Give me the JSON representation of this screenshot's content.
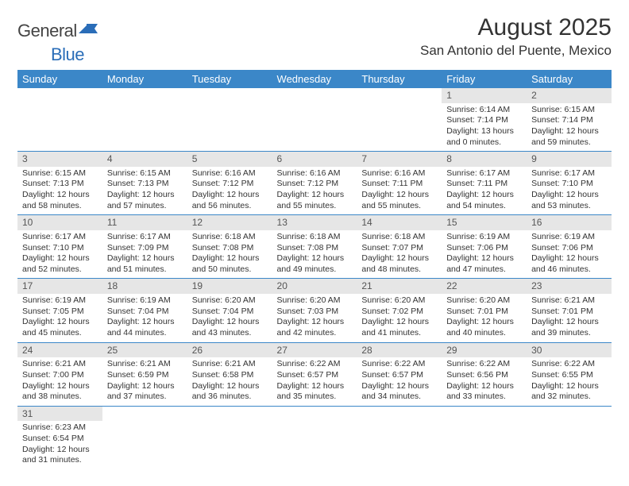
{
  "header": {
    "logo_general": "General",
    "logo_blue": "Blue",
    "month_title": "August 2025",
    "location": "San Antonio del Puente, Mexico"
  },
  "colors": {
    "header_bg": "#3b87c8",
    "header_fg": "#ffffff",
    "daynum_bg": "#e6e6e6",
    "row_border": "#3b87c8",
    "logo_blue": "#2a6db8"
  },
  "daynames": [
    "Sunday",
    "Monday",
    "Tuesday",
    "Wednesday",
    "Thursday",
    "Friday",
    "Saturday"
  ],
  "weeks": [
    [
      {
        "n": "",
        "sr": "",
        "ss": "",
        "dl": ""
      },
      {
        "n": "",
        "sr": "",
        "ss": "",
        "dl": ""
      },
      {
        "n": "",
        "sr": "",
        "ss": "",
        "dl": ""
      },
      {
        "n": "",
        "sr": "",
        "ss": "",
        "dl": ""
      },
      {
        "n": "",
        "sr": "",
        "ss": "",
        "dl": ""
      },
      {
        "n": "1",
        "sr": "Sunrise: 6:14 AM",
        "ss": "Sunset: 7:14 PM",
        "dl": "Daylight: 13 hours and 0 minutes."
      },
      {
        "n": "2",
        "sr": "Sunrise: 6:15 AM",
        "ss": "Sunset: 7:14 PM",
        "dl": "Daylight: 12 hours and 59 minutes."
      }
    ],
    [
      {
        "n": "3",
        "sr": "Sunrise: 6:15 AM",
        "ss": "Sunset: 7:13 PM",
        "dl": "Daylight: 12 hours and 58 minutes."
      },
      {
        "n": "4",
        "sr": "Sunrise: 6:15 AM",
        "ss": "Sunset: 7:13 PM",
        "dl": "Daylight: 12 hours and 57 minutes."
      },
      {
        "n": "5",
        "sr": "Sunrise: 6:16 AM",
        "ss": "Sunset: 7:12 PM",
        "dl": "Daylight: 12 hours and 56 minutes."
      },
      {
        "n": "6",
        "sr": "Sunrise: 6:16 AM",
        "ss": "Sunset: 7:12 PM",
        "dl": "Daylight: 12 hours and 55 minutes."
      },
      {
        "n": "7",
        "sr": "Sunrise: 6:16 AM",
        "ss": "Sunset: 7:11 PM",
        "dl": "Daylight: 12 hours and 55 minutes."
      },
      {
        "n": "8",
        "sr": "Sunrise: 6:17 AM",
        "ss": "Sunset: 7:11 PM",
        "dl": "Daylight: 12 hours and 54 minutes."
      },
      {
        "n": "9",
        "sr": "Sunrise: 6:17 AM",
        "ss": "Sunset: 7:10 PM",
        "dl": "Daylight: 12 hours and 53 minutes."
      }
    ],
    [
      {
        "n": "10",
        "sr": "Sunrise: 6:17 AM",
        "ss": "Sunset: 7:10 PM",
        "dl": "Daylight: 12 hours and 52 minutes."
      },
      {
        "n": "11",
        "sr": "Sunrise: 6:17 AM",
        "ss": "Sunset: 7:09 PM",
        "dl": "Daylight: 12 hours and 51 minutes."
      },
      {
        "n": "12",
        "sr": "Sunrise: 6:18 AM",
        "ss": "Sunset: 7:08 PM",
        "dl": "Daylight: 12 hours and 50 minutes."
      },
      {
        "n": "13",
        "sr": "Sunrise: 6:18 AM",
        "ss": "Sunset: 7:08 PM",
        "dl": "Daylight: 12 hours and 49 minutes."
      },
      {
        "n": "14",
        "sr": "Sunrise: 6:18 AM",
        "ss": "Sunset: 7:07 PM",
        "dl": "Daylight: 12 hours and 48 minutes."
      },
      {
        "n": "15",
        "sr": "Sunrise: 6:19 AM",
        "ss": "Sunset: 7:06 PM",
        "dl": "Daylight: 12 hours and 47 minutes."
      },
      {
        "n": "16",
        "sr": "Sunrise: 6:19 AM",
        "ss": "Sunset: 7:06 PM",
        "dl": "Daylight: 12 hours and 46 minutes."
      }
    ],
    [
      {
        "n": "17",
        "sr": "Sunrise: 6:19 AM",
        "ss": "Sunset: 7:05 PM",
        "dl": "Daylight: 12 hours and 45 minutes."
      },
      {
        "n": "18",
        "sr": "Sunrise: 6:19 AM",
        "ss": "Sunset: 7:04 PM",
        "dl": "Daylight: 12 hours and 44 minutes."
      },
      {
        "n": "19",
        "sr": "Sunrise: 6:20 AM",
        "ss": "Sunset: 7:04 PM",
        "dl": "Daylight: 12 hours and 43 minutes."
      },
      {
        "n": "20",
        "sr": "Sunrise: 6:20 AM",
        "ss": "Sunset: 7:03 PM",
        "dl": "Daylight: 12 hours and 42 minutes."
      },
      {
        "n": "21",
        "sr": "Sunrise: 6:20 AM",
        "ss": "Sunset: 7:02 PM",
        "dl": "Daylight: 12 hours and 41 minutes."
      },
      {
        "n": "22",
        "sr": "Sunrise: 6:20 AM",
        "ss": "Sunset: 7:01 PM",
        "dl": "Daylight: 12 hours and 40 minutes."
      },
      {
        "n": "23",
        "sr": "Sunrise: 6:21 AM",
        "ss": "Sunset: 7:01 PM",
        "dl": "Daylight: 12 hours and 39 minutes."
      }
    ],
    [
      {
        "n": "24",
        "sr": "Sunrise: 6:21 AM",
        "ss": "Sunset: 7:00 PM",
        "dl": "Daylight: 12 hours and 38 minutes."
      },
      {
        "n": "25",
        "sr": "Sunrise: 6:21 AM",
        "ss": "Sunset: 6:59 PM",
        "dl": "Daylight: 12 hours and 37 minutes."
      },
      {
        "n": "26",
        "sr": "Sunrise: 6:21 AM",
        "ss": "Sunset: 6:58 PM",
        "dl": "Daylight: 12 hours and 36 minutes."
      },
      {
        "n": "27",
        "sr": "Sunrise: 6:22 AM",
        "ss": "Sunset: 6:57 PM",
        "dl": "Daylight: 12 hours and 35 minutes."
      },
      {
        "n": "28",
        "sr": "Sunrise: 6:22 AM",
        "ss": "Sunset: 6:57 PM",
        "dl": "Daylight: 12 hours and 34 minutes."
      },
      {
        "n": "29",
        "sr": "Sunrise: 6:22 AM",
        "ss": "Sunset: 6:56 PM",
        "dl": "Daylight: 12 hours and 33 minutes."
      },
      {
        "n": "30",
        "sr": "Sunrise: 6:22 AM",
        "ss": "Sunset: 6:55 PM",
        "dl": "Daylight: 12 hours and 32 minutes."
      }
    ],
    [
      {
        "n": "31",
        "sr": "Sunrise: 6:23 AM",
        "ss": "Sunset: 6:54 PM",
        "dl": "Daylight: 12 hours and 31 minutes."
      },
      {
        "n": "",
        "sr": "",
        "ss": "",
        "dl": ""
      },
      {
        "n": "",
        "sr": "",
        "ss": "",
        "dl": ""
      },
      {
        "n": "",
        "sr": "",
        "ss": "",
        "dl": ""
      },
      {
        "n": "",
        "sr": "",
        "ss": "",
        "dl": ""
      },
      {
        "n": "",
        "sr": "",
        "ss": "",
        "dl": ""
      },
      {
        "n": "",
        "sr": "",
        "ss": "",
        "dl": ""
      }
    ]
  ]
}
